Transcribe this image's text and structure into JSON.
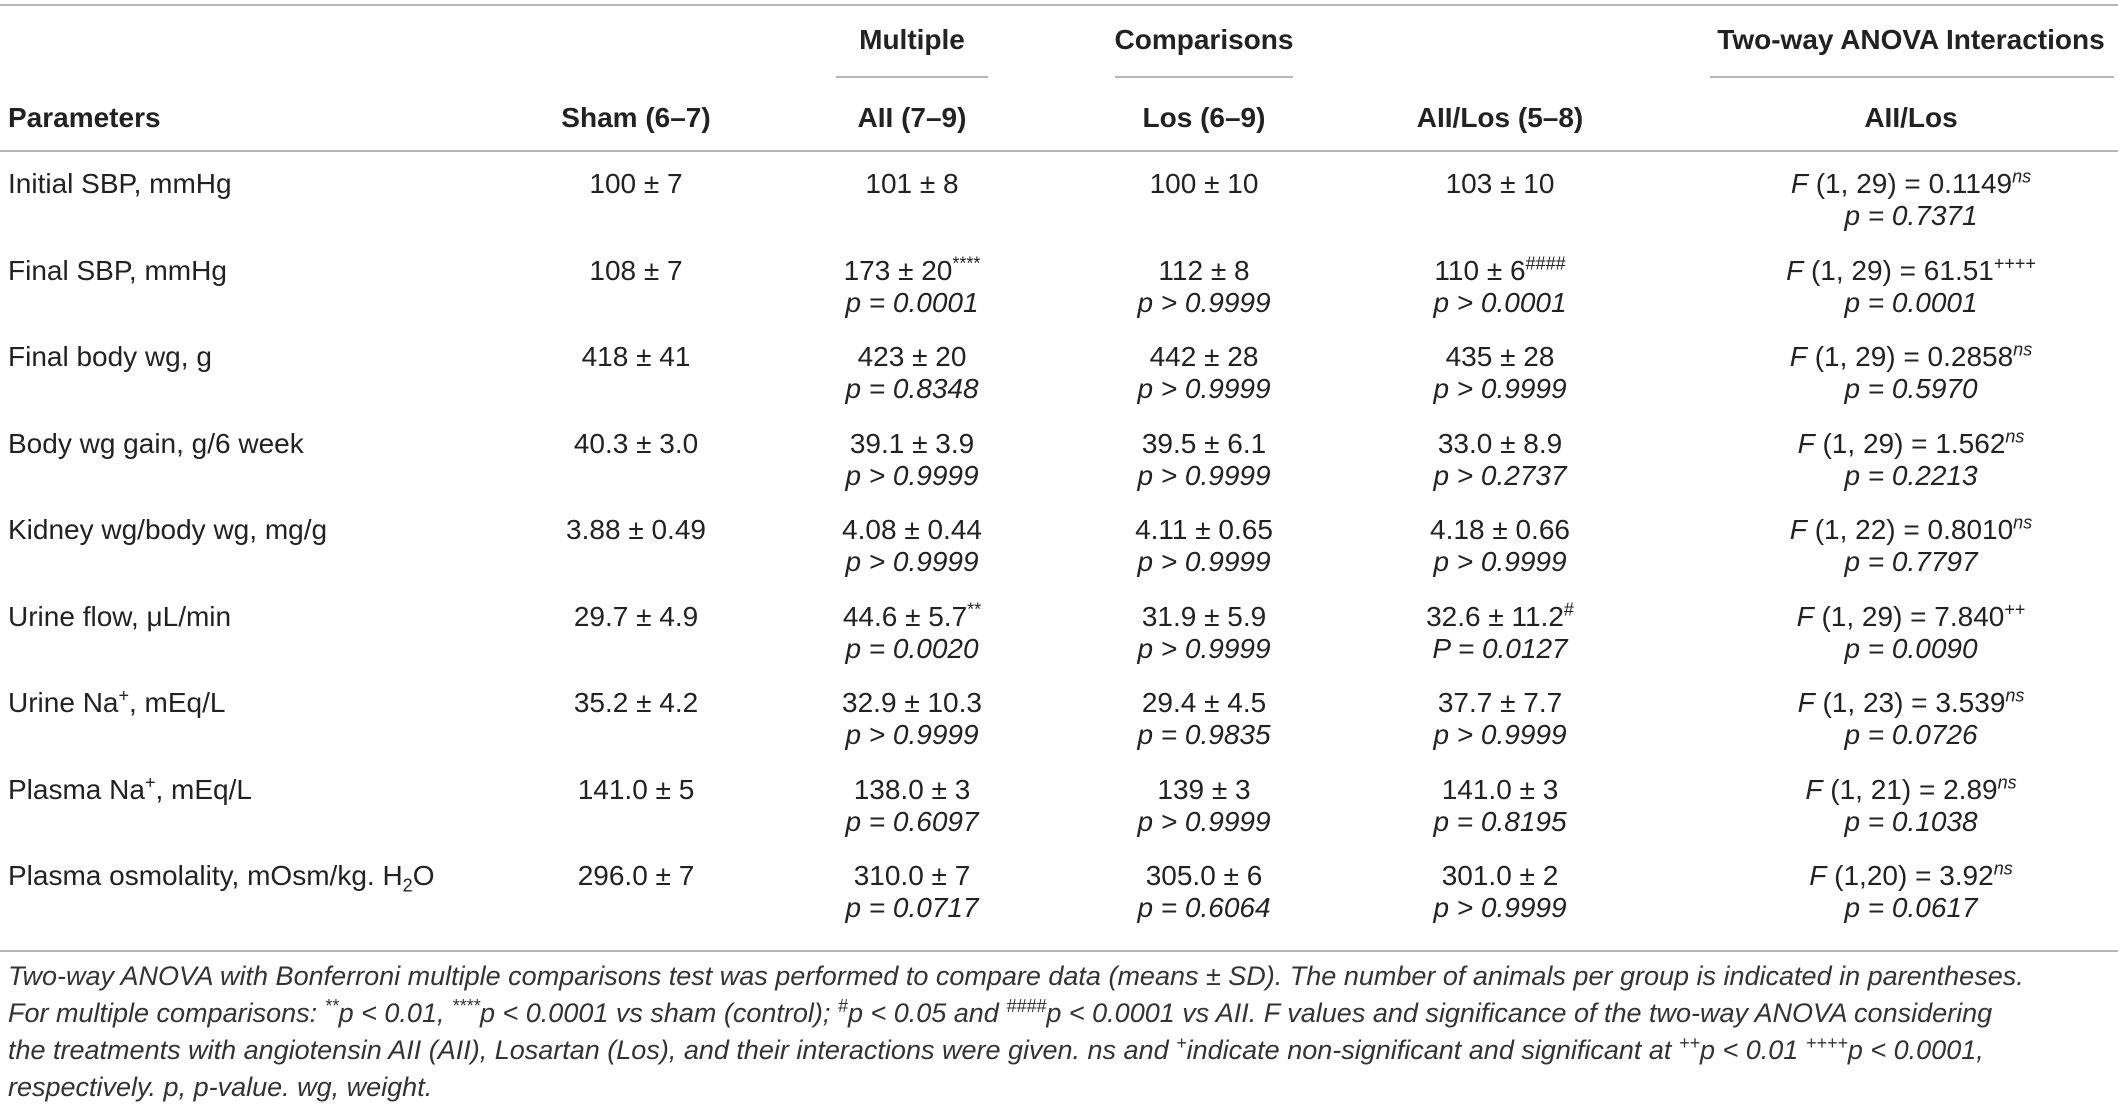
{
  "header": {
    "group_multiple": "Multiple",
    "group_comparisons": "Comparisons",
    "group_anova": "Two-way ANOVA Interactions",
    "col_parameters": "Parameters",
    "col_sham": "Sham (6–7)",
    "col_aii": "AII (7–9)",
    "col_los": "Los (6–9)",
    "col_aiilos": "AII/Los (5–8)",
    "col_inter": "AII/Los"
  },
  "rows": [
    {
      "param": "Initial SBP, mmHg",
      "sham": "100 ± 7",
      "aii": "101 ± 8",
      "los": "100 ± 10",
      "aiilos": "103 ± 10",
      "f": "F (1, 29) = 0.1149",
      "fsup": "ns",
      "fp": "p = 0.7371",
      "aii_p": "",
      "los_p": "",
      "aiilos_p": ""
    },
    {
      "param": "Final SBP, mmHg",
      "sham": "108 ± 7",
      "aii": "173 ± 20",
      "aii_sup": "****",
      "los": "112 ± 8",
      "aiilos": "110 ± 6",
      "aiilos_sup": "####",
      "f": "F (1, 29) = 61.51",
      "fsup": "++++",
      "fp": "p = 0.0001",
      "aii_p": "p = 0.0001",
      "los_p": "p > 0.9999",
      "aiilos_p": "p > 0.0001"
    },
    {
      "param": "Final body wg, g",
      "sham": "418 ± 41",
      "aii": "423 ± 20",
      "los": "442 ± 28",
      "aiilos": "435 ± 28",
      "f": "F (1, 29) = 0.2858",
      "fsup": "ns",
      "fp": "p = 0.5970",
      "aii_p": "p = 0.8348",
      "los_p": "p > 0.9999",
      "aiilos_p": "p > 0.9999"
    },
    {
      "param": "Body wg gain, g/6 week",
      "sham": "40.3 ± 3.0",
      "aii": "39.1 ± 3.9",
      "los": "39.5 ± 6.1",
      "aiilos": "33.0 ± 8.9",
      "f": "F (1, 29) = 1.562",
      "fsup": "ns",
      "fp": "p = 0.2213",
      "aii_p": "p > 0.9999",
      "los_p": "p > 0.9999",
      "aiilos_p": "p > 0.2737"
    },
    {
      "param": "Kidney wg/body wg, mg/g",
      "sham": "3.88 ± 0.49",
      "aii": "4.08 ± 0.44",
      "los": "4.11 ± 0.65",
      "aiilos": "4.18 ± 0.66",
      "f": "F (1, 22) = 0.8010",
      "fsup": "ns",
      "fp": "p = 0.7797",
      "aii_p": "p > 0.9999",
      "los_p": "p > 0.9999",
      "aiilos_p": "p > 0.9999"
    },
    {
      "param": "Urine flow, μL/min",
      "sham": "29.7 ± 4.9",
      "aii": "44.6 ± 5.7",
      "aii_sup": "**",
      "los": "31.9 ± 5.9",
      "aiilos": "32.6 ± 11.2",
      "aiilos_sup": "#",
      "f": "F (1, 29) = 7.840",
      "fsup": "++",
      "fp": "p = 0.0090",
      "aii_p": "p = 0.0020",
      "los_p": "p > 0.9999",
      "aiilos_p": "P = 0.0127"
    },
    {
      "param": "Urine Na",
      "param_sup": "+",
      "param_tail": ", mEq/L",
      "sham": "35.2 ± 4.2",
      "aii": "32.9 ± 10.3",
      "los": "29.4 ± 4.5",
      "aiilos": "37.7 ± 7.7",
      "f": "F (1, 23) = 3.539",
      "fsup": "ns",
      "fp": "p = 0.0726",
      "aii_p": "p > 0.9999",
      "los_p": "p = 0.9835",
      "aiilos_p": "p > 0.9999"
    },
    {
      "param": "Plasma Na",
      "param_sup": "+",
      "param_tail": ", mEq/L",
      "sham": "141.0 ± 5",
      "aii": "138.0 ± 3",
      "los": "139 ± 3",
      "aiilos": "141.0 ± 3",
      "f": "F (1, 21) = 2.89",
      "fsup": "ns",
      "fp": "p = 0.1038",
      "aii_p": "p = 0.6097",
      "los_p": "p > 0.9999",
      "aiilos_p": "p = 0.8195"
    },
    {
      "param": "Plasma osmolality, mOsm/kg. H",
      "param_sub": "2",
      "param_tail": "O",
      "sham": "296.0 ± 7",
      "aii": "310.0 ± 7",
      "los": "305.0 ± 6",
      "aiilos": "301.0 ± 2",
      "f": "F (1,20) = 3.92",
      "fsup": "ns",
      "fp": "p = 0.0617",
      "aii_p": "p = 0.0717",
      "los_p": "p = 0.6064",
      "aiilos_p": "p > 0.9999"
    }
  ],
  "footnote": {
    "l1": "Two-way ANOVA with Bonferroni multiple comparisons test was performed to compare data (means ± SD). The number of animals per group is indicated in parentheses.",
    "l2a": "For multiple comparisons: ",
    "l2s1": "**",
    "l2b": "p < 0.01, ",
    "l2s2": "****",
    "l2c": "p < 0.0001 vs sham (control); ",
    "l2s3": "#",
    "l2d": "p < 0.05 and ",
    "l2s4": "####",
    "l2e": "p < 0.0001 vs AII. F values and significance of the two-way ANOVA considering",
    "l3a": "the treatments with angiotensin AII (AII), Losartan (Los), and their interactions were given. ns and ",
    "l3s1": "+",
    "l3b": "indicate non-significant and significant at ",
    "l3s2": "++",
    "l3c": "p < 0.01 ",
    "l3s3": "++++",
    "l3d": "p < 0.0001,",
    "l4": "respectively. p, p-value. wg, weight."
  }
}
